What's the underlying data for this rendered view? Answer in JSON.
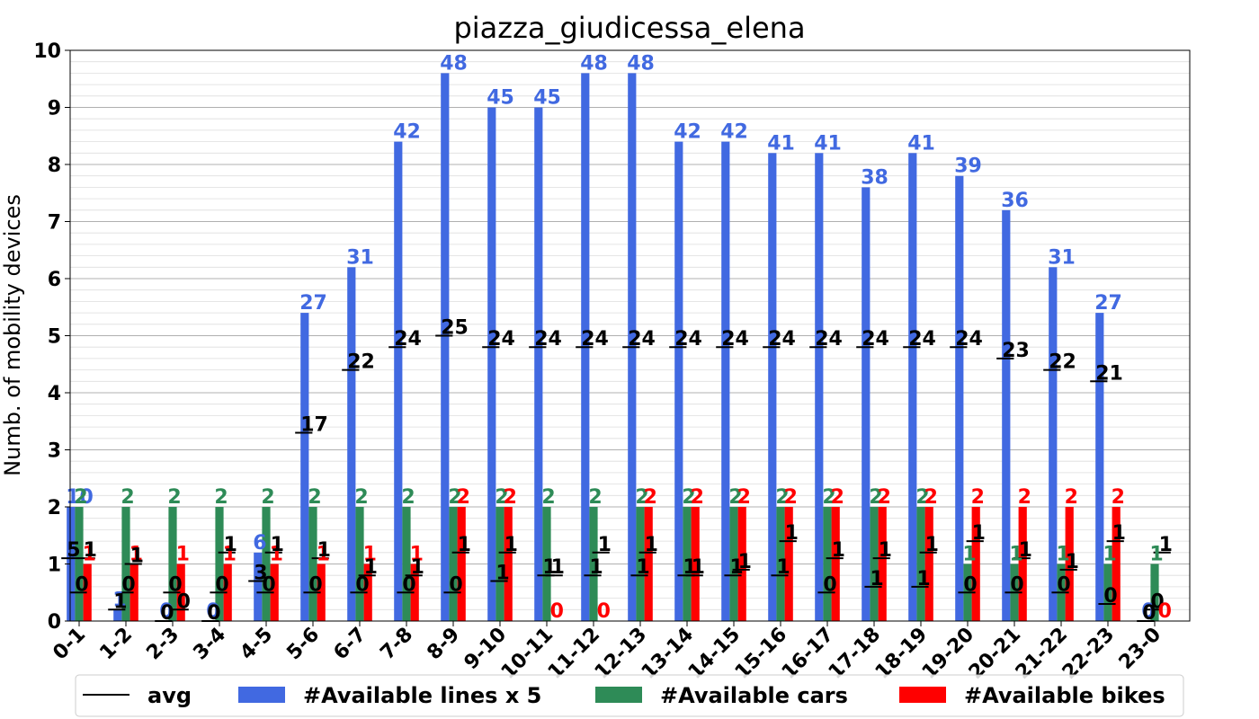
{
  "chart_data": {
    "type": "bar",
    "title": "piazza_giudicessa_elena",
    "xlabel": "",
    "ylabel": "Numb. of mobility devices",
    "ylim": [
      0,
      10
    ],
    "yticks": [
      "0",
      "1",
      "2",
      "3",
      "4",
      "5",
      "6",
      "7",
      "8",
      "9",
      "10"
    ],
    "grid": true,
    "legend_position": "bottom",
    "categories": [
      "0-1",
      "1-2",
      "2-3",
      "3-4",
      "4-5",
      "5-6",
      "6-7",
      "7-8",
      "8-9",
      "9-10",
      "10-11",
      "11-12",
      "12-13",
      "13-14",
      "14-15",
      "15-16",
      "16-17",
      "17-18",
      "18-19",
      "19-20",
      "20-21",
      "21-22",
      "22-23",
      "23-0"
    ],
    "series": [
      {
        "name": "#Available lines x 5",
        "color": "#4169E1",
        "values": [
          2.0,
          0.2,
          0,
          0,
          1.2,
          5.4,
          6.2,
          8.4,
          9.6,
          9.0,
          9.0,
          9.6,
          9.6,
          8.4,
          8.4,
          8.2,
          8.2,
          7.6,
          8.2,
          7.8,
          7.2,
          6.2,
          5.4,
          0
        ],
        "labels": [
          "10",
          "1",
          "0",
          "0",
          "6",
          "27",
          "31",
          "42",
          "48",
          "45",
          "45",
          "48",
          "48",
          "42",
          "42",
          "41",
          "41",
          "38",
          "41",
          "39",
          "36",
          "31",
          "27",
          "0"
        ],
        "avg_values": [
          1.1,
          0.2,
          0,
          0,
          0.7,
          3.3,
          4.4,
          4.8,
          5.0,
          4.8,
          4.8,
          4.8,
          4.8,
          4.8,
          4.8,
          4.8,
          4.8,
          4.8,
          4.8,
          4.8,
          4.6,
          4.4,
          4.2,
          0
        ],
        "avg_labels": [
          "5",
          "1",
          "0",
          "0",
          "3",
          "17",
          "22",
          "24",
          "25",
          "24",
          "24",
          "24",
          "24",
          "24",
          "24",
          "24",
          "24",
          "24",
          "24",
          "24",
          "23",
          "22",
          "21",
          "0"
        ]
      },
      {
        "name": "#Available cars",
        "color": "#2E8B57",
        "values": [
          2,
          2,
          2,
          2,
          2,
          2,
          2,
          2,
          2,
          2,
          2,
          2,
          2,
          2,
          2,
          2,
          2,
          2,
          2,
          1,
          1,
          1,
          1,
          1
        ],
        "labels": [
          "2",
          "2",
          "2",
          "2",
          "2",
          "2",
          "2",
          "2",
          "2",
          "2",
          "2",
          "2",
          "2",
          "2",
          "2",
          "2",
          "2",
          "2",
          "2",
          "1",
          "1",
          "1",
          "1",
          "1"
        ],
        "avg_values": [
          0.5,
          0.5,
          0.5,
          0.5,
          0.5,
          0.5,
          0.5,
          0.5,
          0.5,
          0.7,
          0.8,
          0.8,
          0.8,
          0.8,
          0.8,
          0.8,
          0.5,
          0.6,
          0.6,
          0.5,
          0.5,
          0.5,
          0.3,
          0.2
        ],
        "avg_labels": [
          "0",
          "0",
          "0",
          "0",
          "0",
          "0",
          "0",
          "0",
          "0",
          "1",
          "1",
          "1",
          "1",
          "1",
          "1",
          "1",
          "0",
          "1",
          "1",
          "0",
          "0",
          "0",
          "0",
          "0"
        ]
      },
      {
        "name": "#Available bikes",
        "color": "#FF0000",
        "values": [
          1,
          1,
          1,
          1,
          1,
          1,
          1,
          1,
          2,
          2,
          0,
          0,
          2,
          2,
          2,
          2,
          2,
          2,
          2,
          2,
          2,
          2,
          2,
          0
        ],
        "labels": [
          "1",
          "1",
          "1",
          "1",
          "1",
          "1",
          "1",
          "1",
          "2",
          "2",
          "0",
          "0",
          "2",
          "2",
          "2",
          "2",
          "2",
          "2",
          "2",
          "2",
          "2",
          "2",
          "2",
          "0"
        ],
        "avg_values": [
          1.1,
          1.0,
          0.2,
          1.2,
          1.2,
          1.1,
          0.8,
          0.8,
          1.2,
          1.2,
          0.8,
          1.2,
          1.2,
          0.8,
          0.9,
          1.4,
          1.1,
          1.1,
          1.2,
          1.4,
          1.1,
          0.9,
          1.4,
          1.2
        ],
        "avg_labels": [
          "1",
          "1",
          "0",
          "1",
          "1",
          "1",
          "1",
          "1",
          "1",
          "1",
          "1",
          "1",
          "1",
          "1",
          "1",
          "1",
          "1",
          "1",
          "1",
          "1",
          "1",
          "1",
          "1",
          "1"
        ]
      }
    ],
    "legend": [
      {
        "label": "avg",
        "kind": "line",
        "color": "#000000"
      },
      {
        "label": "#Available lines x 5",
        "kind": "patch",
        "color": "#4169E1"
      },
      {
        "label": "#Available cars",
        "kind": "patch",
        "color": "#2E8B57"
      },
      {
        "label": "#Available bikes",
        "kind": "patch",
        "color": "#FF0000"
      }
    ]
  }
}
